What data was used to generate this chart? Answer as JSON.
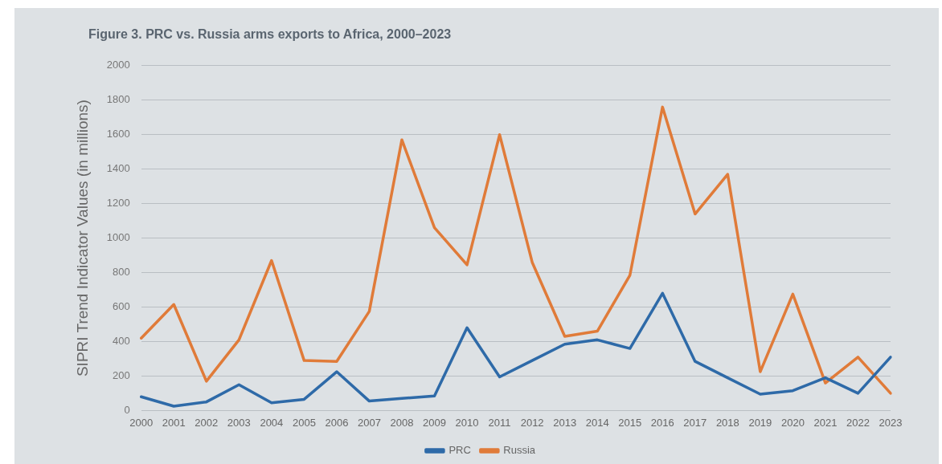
{
  "chart_data": {
    "type": "line",
    "title": "Figure 3. PRC vs. Russia arms exports to Africa, 2000–2023",
    "ylabel": "SIPRI Trend Indicator Values (in millions)",
    "categories": [
      "2000",
      "2001",
      "2002",
      "2003",
      "2004",
      "2005",
      "2006",
      "2007",
      "2008",
      "2009",
      "2010",
      "2011",
      "2012",
      "2013",
      "2014",
      "2015",
      "2016",
      "2017",
      "2018",
      "2019",
      "2020",
      "2021",
      "2022",
      "2023"
    ],
    "series": [
      {
        "name": "PRC",
        "color": "#2e6aa8",
        "values": [
          80,
          25,
          50,
          150,
          45,
          65,
          225,
          55,
          70,
          85,
          480,
          195,
          290,
          385,
          410,
          360,
          680,
          285,
          190,
          95,
          115,
          190,
          100,
          310
        ]
      },
      {
        "name": "Russia",
        "color": "#e07b39",
        "values": [
          420,
          615,
          170,
          410,
          870,
          290,
          285,
          575,
          1570,
          1060,
          845,
          1600,
          860,
          430,
          460,
          785,
          1760,
          1140,
          1370,
          225,
          675,
          160,
          310,
          100
        ]
      }
    ],
    "ylim": [
      0,
      2000
    ],
    "yticks": [
      0,
      200,
      400,
      600,
      800,
      1000,
      1200,
      1400,
      1600,
      1800,
      2000
    ],
    "grid": "y",
    "legend": "bottom",
    "marker": "none",
    "line_style": "solid"
  }
}
